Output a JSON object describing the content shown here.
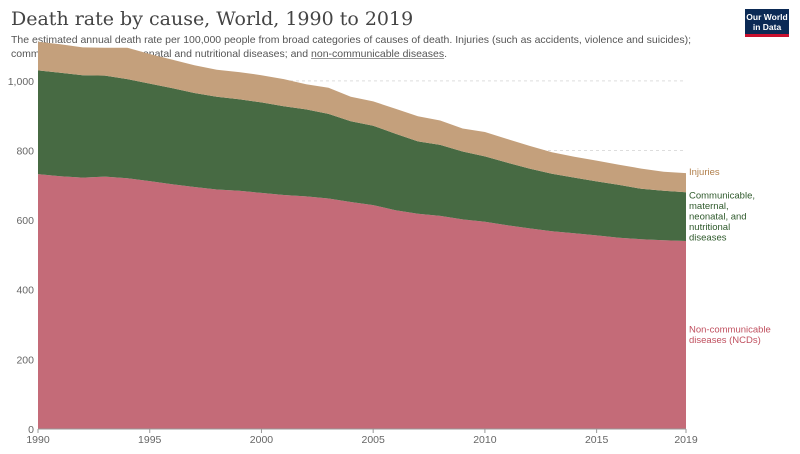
{
  "header": {
    "title": "Death rate by cause, World, 1990 to 2019",
    "subtitle_text": "The estimated annual death rate per 100,000 people from broad categories of causes of death. Injuries (such as accidents, violence and suicides); communicable, maternal, neonatal and nutritional diseases; and ",
    "subtitle_link": "non-communicable diseases",
    "subtitle_end": "."
  },
  "logo": {
    "line1": "Our World",
    "line2": "in Data",
    "colors": {
      "bg": "#0b2a55",
      "accent": "#c8102e"
    }
  },
  "chart_data": {
    "type": "area",
    "stacked": true,
    "x": [
      1990,
      1991,
      1992,
      1993,
      1994,
      1995,
      1996,
      1997,
      1998,
      1999,
      2000,
      2001,
      2002,
      2003,
      2004,
      2005,
      2006,
      2007,
      2008,
      2009,
      2010,
      2011,
      2012,
      2013,
      2014,
      2015,
      2016,
      2017,
      2018,
      2019
    ],
    "xlim": [
      1990,
      2019
    ],
    "ylim": [
      0,
      1100
    ],
    "x_ticks": [
      1990,
      1995,
      2000,
      2005,
      2010,
      2015,
      2019
    ],
    "y_ticks": [
      0,
      200,
      400,
      600,
      800,
      "1,000"
    ],
    "grid": "horizontal dashed",
    "series": [
      {
        "name": "Non-communicable diseases (NCDs)",
        "label_lines": [
          "Non-communicable",
          "diseases (NCDs)"
        ],
        "color": "#c46b78",
        "label_color": "#c0505f",
        "values": [
          732,
          726,
          722,
          725,
          720,
          712,
          703,
          695,
          688,
          684,
          678,
          672,
          668,
          662,
          652,
          643,
          628,
          618,
          612,
          602,
          595,
          585,
          576,
          568,
          562,
          556,
          549,
          545,
          542,
          540
        ]
      },
      {
        "name": "Communicable, maternal, neonatal, and nutritional diseases",
        "label_lines": [
          "Communicable,",
          "maternal,",
          "neonatal, and",
          "nutritional",
          "diseases"
        ],
        "color": "#476a43",
        "label_color": "#2f5a2c",
        "values": [
          298,
          297,
          294,
          290,
          285,
          280,
          276,
          270,
          266,
          263,
          260,
          255,
          250,
          243,
          232,
          228,
          220,
          208,
          204,
          195,
          188,
          180,
          172,
          165,
          160,
          155,
          152,
          145,
          142,
          140
        ]
      },
      {
        "name": "Injuries",
        "label_lines": [
          "Injuries"
        ],
        "color": "#c4a07c",
        "label_color": "#b07e4a",
        "values": [
          82,
          82,
          80,
          80,
          90,
          85,
          82,
          80,
          78,
          78,
          78,
          78,
          72,
          75,
          70,
          70,
          72,
          72,
          70,
          66,
          70,
          68,
          65,
          62,
          60,
          60,
          58,
          58,
          55,
          55
        ]
      }
    ]
  }
}
